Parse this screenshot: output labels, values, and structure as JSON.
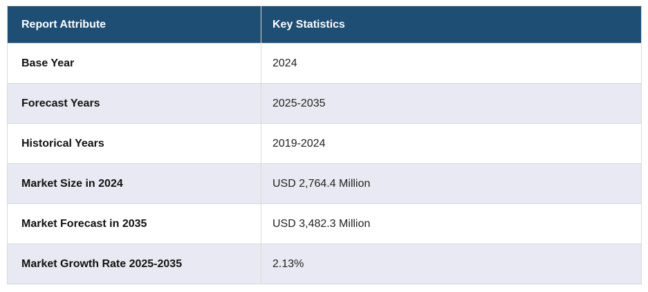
{
  "table": {
    "headers": [
      {
        "label": "Report Attribute"
      },
      {
        "label": "Key Statistics"
      }
    ],
    "rows": [
      {
        "attribute": "Base Year",
        "value": "2024"
      },
      {
        "attribute": "Forecast Years",
        "value": "2025-2035"
      },
      {
        "attribute": "Historical Years",
        "value": "2019-2024"
      },
      {
        "attribute": "Market Size in 2024",
        "value": "USD 2,764.4 Million"
      },
      {
        "attribute": "Market Forecast in 2035",
        "value": "USD 3,482.3 Million"
      },
      {
        "attribute": "Market Growth Rate 2025-2035",
        "value": "2.13%"
      }
    ],
    "colors": {
      "header_bg": "#1f4e74",
      "header_text": "#ffffff",
      "row_bg": "#ffffff",
      "alt_row_bg": "#e8e9f2",
      "border": "#d9d9d9",
      "attribute_text": "#111111",
      "value_text": "#222222"
    }
  }
}
